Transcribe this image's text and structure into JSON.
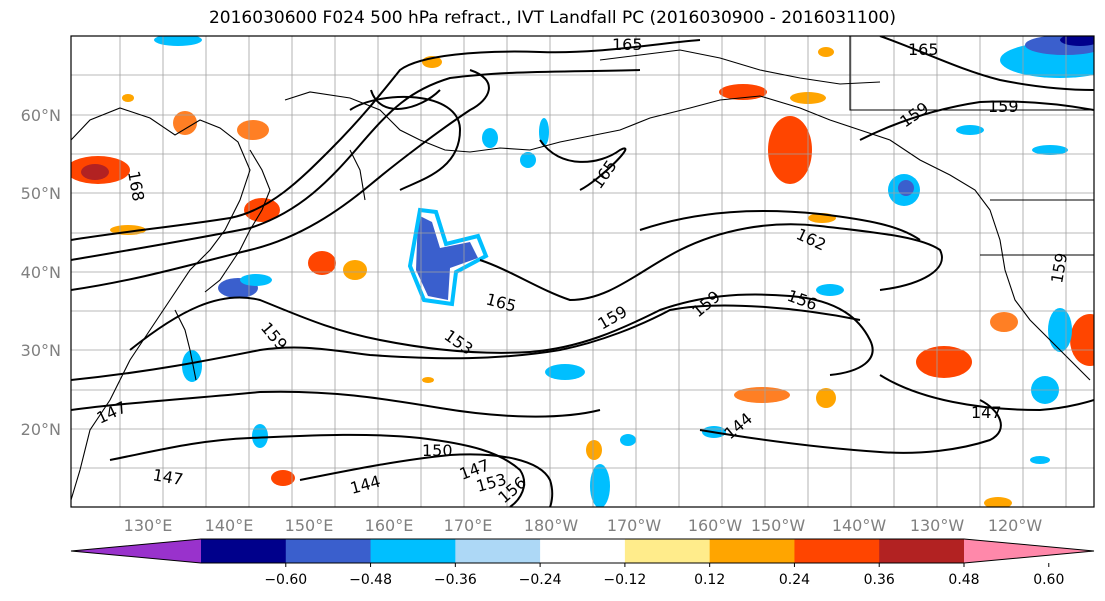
{
  "title": "2016030600 F024 500 hPa refract., IVT Landfall PC (2016030900 - 2016031100)",
  "lat_labels": [
    "60°N",
    "50°N",
    "40°N",
    "30°N",
    "20°N"
  ],
  "lon_labels": [
    "130°E",
    "140°E",
    "150°E",
    "160°E",
    "170°E",
    "180°W",
    "170°W",
    "160°W",
    "150°W",
    "140°W",
    "130°W",
    "120°W"
  ],
  "colorbar": {
    "colors": [
      "#9932cc",
      "#00008b",
      "#3a5fcd",
      "#00bfff",
      "#add8f6",
      "#ffffff",
      "#ffec8b",
      "#ffa500",
      "#ff4500",
      "#b22222",
      "#ff88aa"
    ],
    "tick_labels": [
      "−0.60",
      "−0.48",
      "−0.36",
      "−0.24",
      "−0.12",
      "0.12",
      "0.24",
      "0.36",
      "0.48",
      "0.60"
    ]
  },
  "contour_labels": [
    "165",
    "165",
    "159",
    "159",
    "168",
    "165",
    "162",
    "159",
    "156",
    "159",
    "165",
    "159",
    "153",
    "159",
    "147",
    "147",
    "150",
    "144",
    "147",
    "144",
    "153",
    "156",
    "147"
  ]
}
